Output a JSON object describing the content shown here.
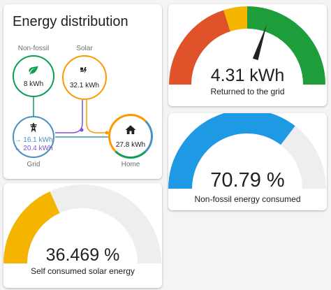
{
  "energy_card": {
    "title": "Energy distribution",
    "nonfossil": {
      "label": "Non-fossil",
      "value": "8 kWh",
      "icon": "leaf-icon"
    },
    "solar": {
      "label": "Solar",
      "value": "32.1 kWh",
      "icon": "solar-power-icon"
    },
    "grid": {
      "label": "Grid",
      "import_value": "16.1 kWh",
      "export_value": "20.4 kWh",
      "icon": "transmission-tower-icon"
    },
    "home": {
      "label": "Home",
      "value": "27.8 kWh",
      "icon": "home-icon"
    }
  },
  "grid_gauge": {
    "value": "4.31 kWh",
    "label": "Returned to the grid",
    "needle_fraction": 0.6
  },
  "nonfossil_gauge": {
    "value": "70.79 %",
    "label": "Non-fossil energy consumed",
    "fraction": 0.7079
  },
  "solar_gauge": {
    "value": "36.469 %",
    "label": "Self consumed solar energy",
    "fraction": 0.36469
  },
  "colors": {
    "green": "#0f9d58",
    "orange": "#ff9800",
    "blue": "#488fc2",
    "purple": "#8353d1",
    "red": "#e0532a",
    "yellow": "#f4b400",
    "gauge_green": "#1e9e3a",
    "nonfossil_blue": "#1e9ae4",
    "solar_yellow": "#f4b400",
    "track": "#eeeeee"
  }
}
